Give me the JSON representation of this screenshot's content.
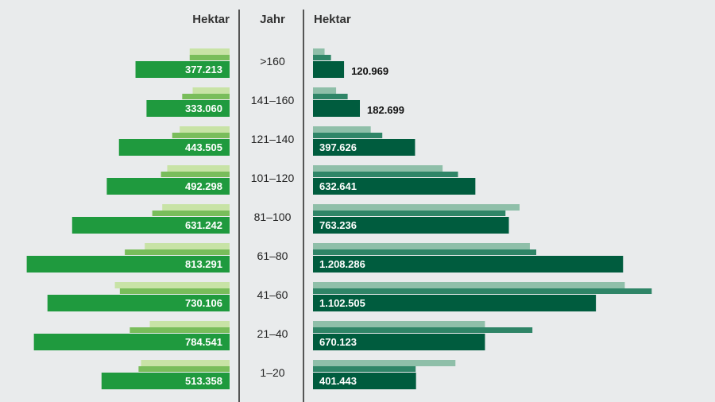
{
  "chart_data": {
    "type": "bar",
    "header": {
      "left_label": "Hektar",
      "center_label": "Jahr",
      "right_label": "Hektar"
    },
    "categories": [
      ">160",
      "141–160",
      "121–140",
      "101–120",
      "81–100",
      "61–80",
      "41–60",
      "21–40",
      "1–20"
    ],
    "series": [
      {
        "side": "left",
        "color_light": "#c8e3a6",
        "color_mid": "#79bd5b",
        "color_main": "#1f9a3e",
        "values_light": [
          160000,
          148000,
          200000,
          250000,
          270000,
          340000,
          460000,
          320000,
          355000
        ],
        "values_mid": [
          160000,
          190000,
          230000,
          275000,
          310000,
          420000,
          440000,
          400000,
          365000
        ],
        "values": [
          377213,
          333060,
          443505,
          492298,
          631242,
          813291,
          730106,
          784541,
          513358
        ],
        "labels": [
          "377.213",
          "333.060",
          "443.505",
          "492.298",
          "631.242",
          "813.291",
          "730.106",
          "784.541",
          "513.358"
        ]
      },
      {
        "side": "right",
        "color_light": "#8fbfa9",
        "color_mid": "#2f8567",
        "color_main": "#005c3e",
        "values_light": [
          45000,
          90000,
          225000,
          505000,
          805000,
          845000,
          1215000,
          670000,
          555000
        ],
        "values_mid": [
          70000,
          135000,
          270000,
          565000,
          750000,
          870000,
          1320000,
          855000,
          400000
        ],
        "values": [
          120969,
          182699,
          397626,
          632641,
          763236,
          1208286,
          1102505,
          670123,
          401443
        ],
        "labels": [
          "120.969",
          "182.699",
          "397.626",
          "632.641",
          "763.236",
          "1.208.286",
          "1.102.505",
          "670.123",
          "401.443"
        ]
      }
    ]
  }
}
